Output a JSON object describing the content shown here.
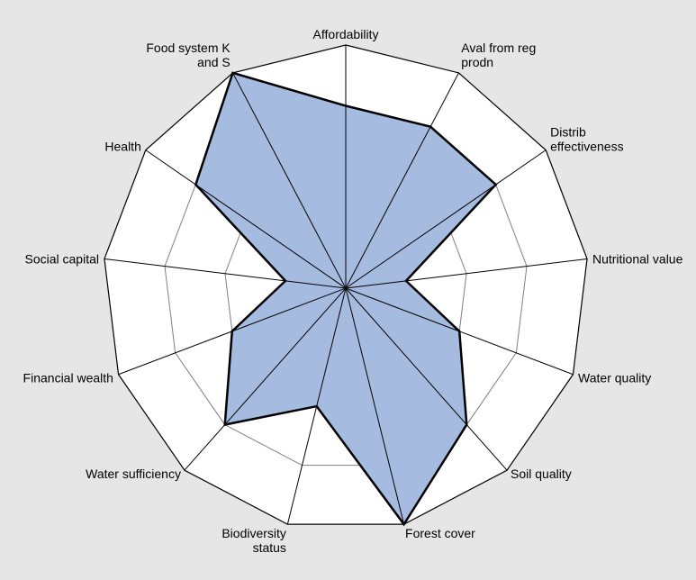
{
  "chart_data": {
    "type": "radar",
    "title": "",
    "grid": true,
    "legend": "none",
    "rmax": 100,
    "grid_levels": [
      25,
      50,
      75
    ],
    "outline_level": 100,
    "axes": [
      {
        "label": "Affordability",
        "label_lines": [
          "Affordability"
        ]
      },
      {
        "label": "Aval from reg prodn",
        "label_lines": [
          "Aval from reg",
          "prodn"
        ]
      },
      {
        "label": "Distrib effectiveness",
        "label_lines": [
          "Distrib",
          "effectiveness"
        ]
      },
      {
        "label": "Nutritional value",
        "label_lines": [
          "Nutritional value"
        ]
      },
      {
        "label": "Water quality",
        "label_lines": [
          "Water quality"
        ]
      },
      {
        "label": "Soil quality",
        "label_lines": [
          "Soil quality"
        ]
      },
      {
        "label": "Forest cover",
        "label_lines": [
          "Forest cover"
        ]
      },
      {
        "label": "Biodiversity status",
        "label_lines": [
          "Biodiversity",
          "status"
        ]
      },
      {
        "label": "Water sufficiency",
        "label_lines": [
          "Water sufficiency"
        ]
      },
      {
        "label": "Financial wealth",
        "label_lines": [
          "Financial wealth"
        ]
      },
      {
        "label": "Social capital",
        "label_lines": [
          "Social capital"
        ]
      },
      {
        "label": "Health",
        "label_lines": [
          "Health"
        ]
      },
      {
        "label": "Food system K and S",
        "label_lines": [
          "Food system K",
          "and S"
        ]
      }
    ],
    "series": [
      {
        "values": [
          75,
          75,
          75,
          25,
          50,
          75,
          100,
          50,
          75,
          50,
          25,
          75,
          100
        ],
        "fill": "#a6bbe0",
        "stroke": "#000000"
      }
    ],
    "colors": {
      "background": "#e6e6e6",
      "plot_fill": "#ffffff",
      "grid": "#808080",
      "spoke": "#000000"
    }
  }
}
